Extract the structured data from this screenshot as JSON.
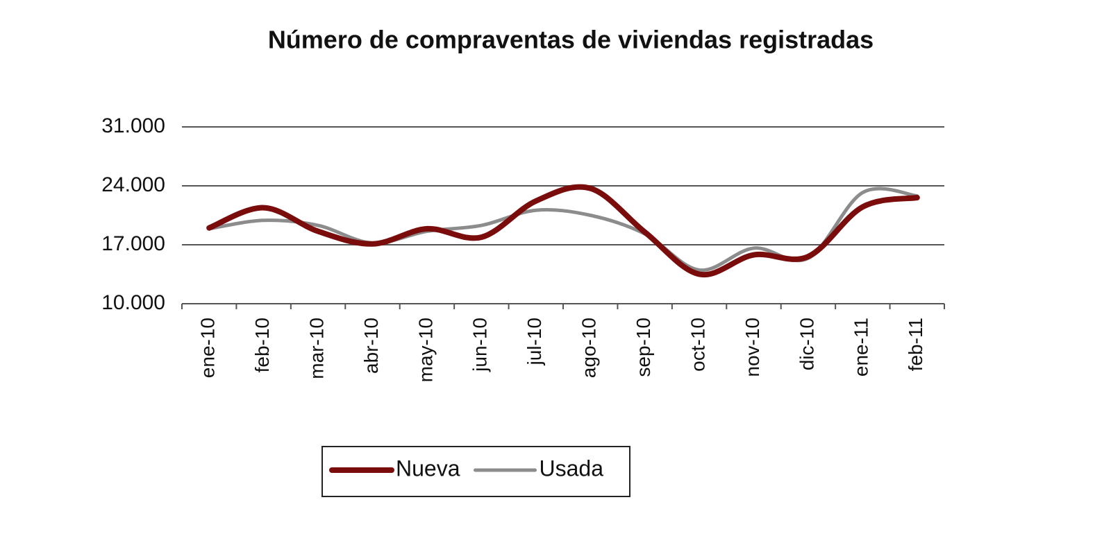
{
  "chart_data": {
    "type": "line",
    "title": "Número de compraventas de viviendas registradas",
    "categories": [
      "ene-10",
      "feb-10",
      "mar-10",
      "abr-10",
      "may-10",
      "jun-10",
      "jul-10",
      "ago-10",
      "sep-10",
      "oct-10",
      "nov-10",
      "dic-10",
      "ene-11",
      "feb-11"
    ],
    "series": [
      {
        "name": "Nueva",
        "color": "#7b0c0c",
        "values": [
          19000,
          21400,
          18600,
          17100,
          18900,
          17900,
          22200,
          23700,
          18500,
          13500,
          15800,
          15600,
          21500,
          22600
        ]
      },
      {
        "name": "Usada",
        "color": "#8c8c8c",
        "values": [
          18900,
          19900,
          19300,
          17200,
          18600,
          19300,
          21100,
          20500,
          18300,
          14000,
          16600,
          15400,
          23200,
          22800
        ]
      }
    ],
    "ylim": [
      10000,
      31000
    ],
    "yticks": [
      {
        "value": 10000,
        "label": "10.000"
      },
      {
        "value": 17000,
        "label": "17.000"
      },
      {
        "value": 24000,
        "label": "24.000"
      },
      {
        "value": 31000,
        "label": "31.000"
      }
    ],
    "grid": true,
    "legend": "bottom"
  }
}
